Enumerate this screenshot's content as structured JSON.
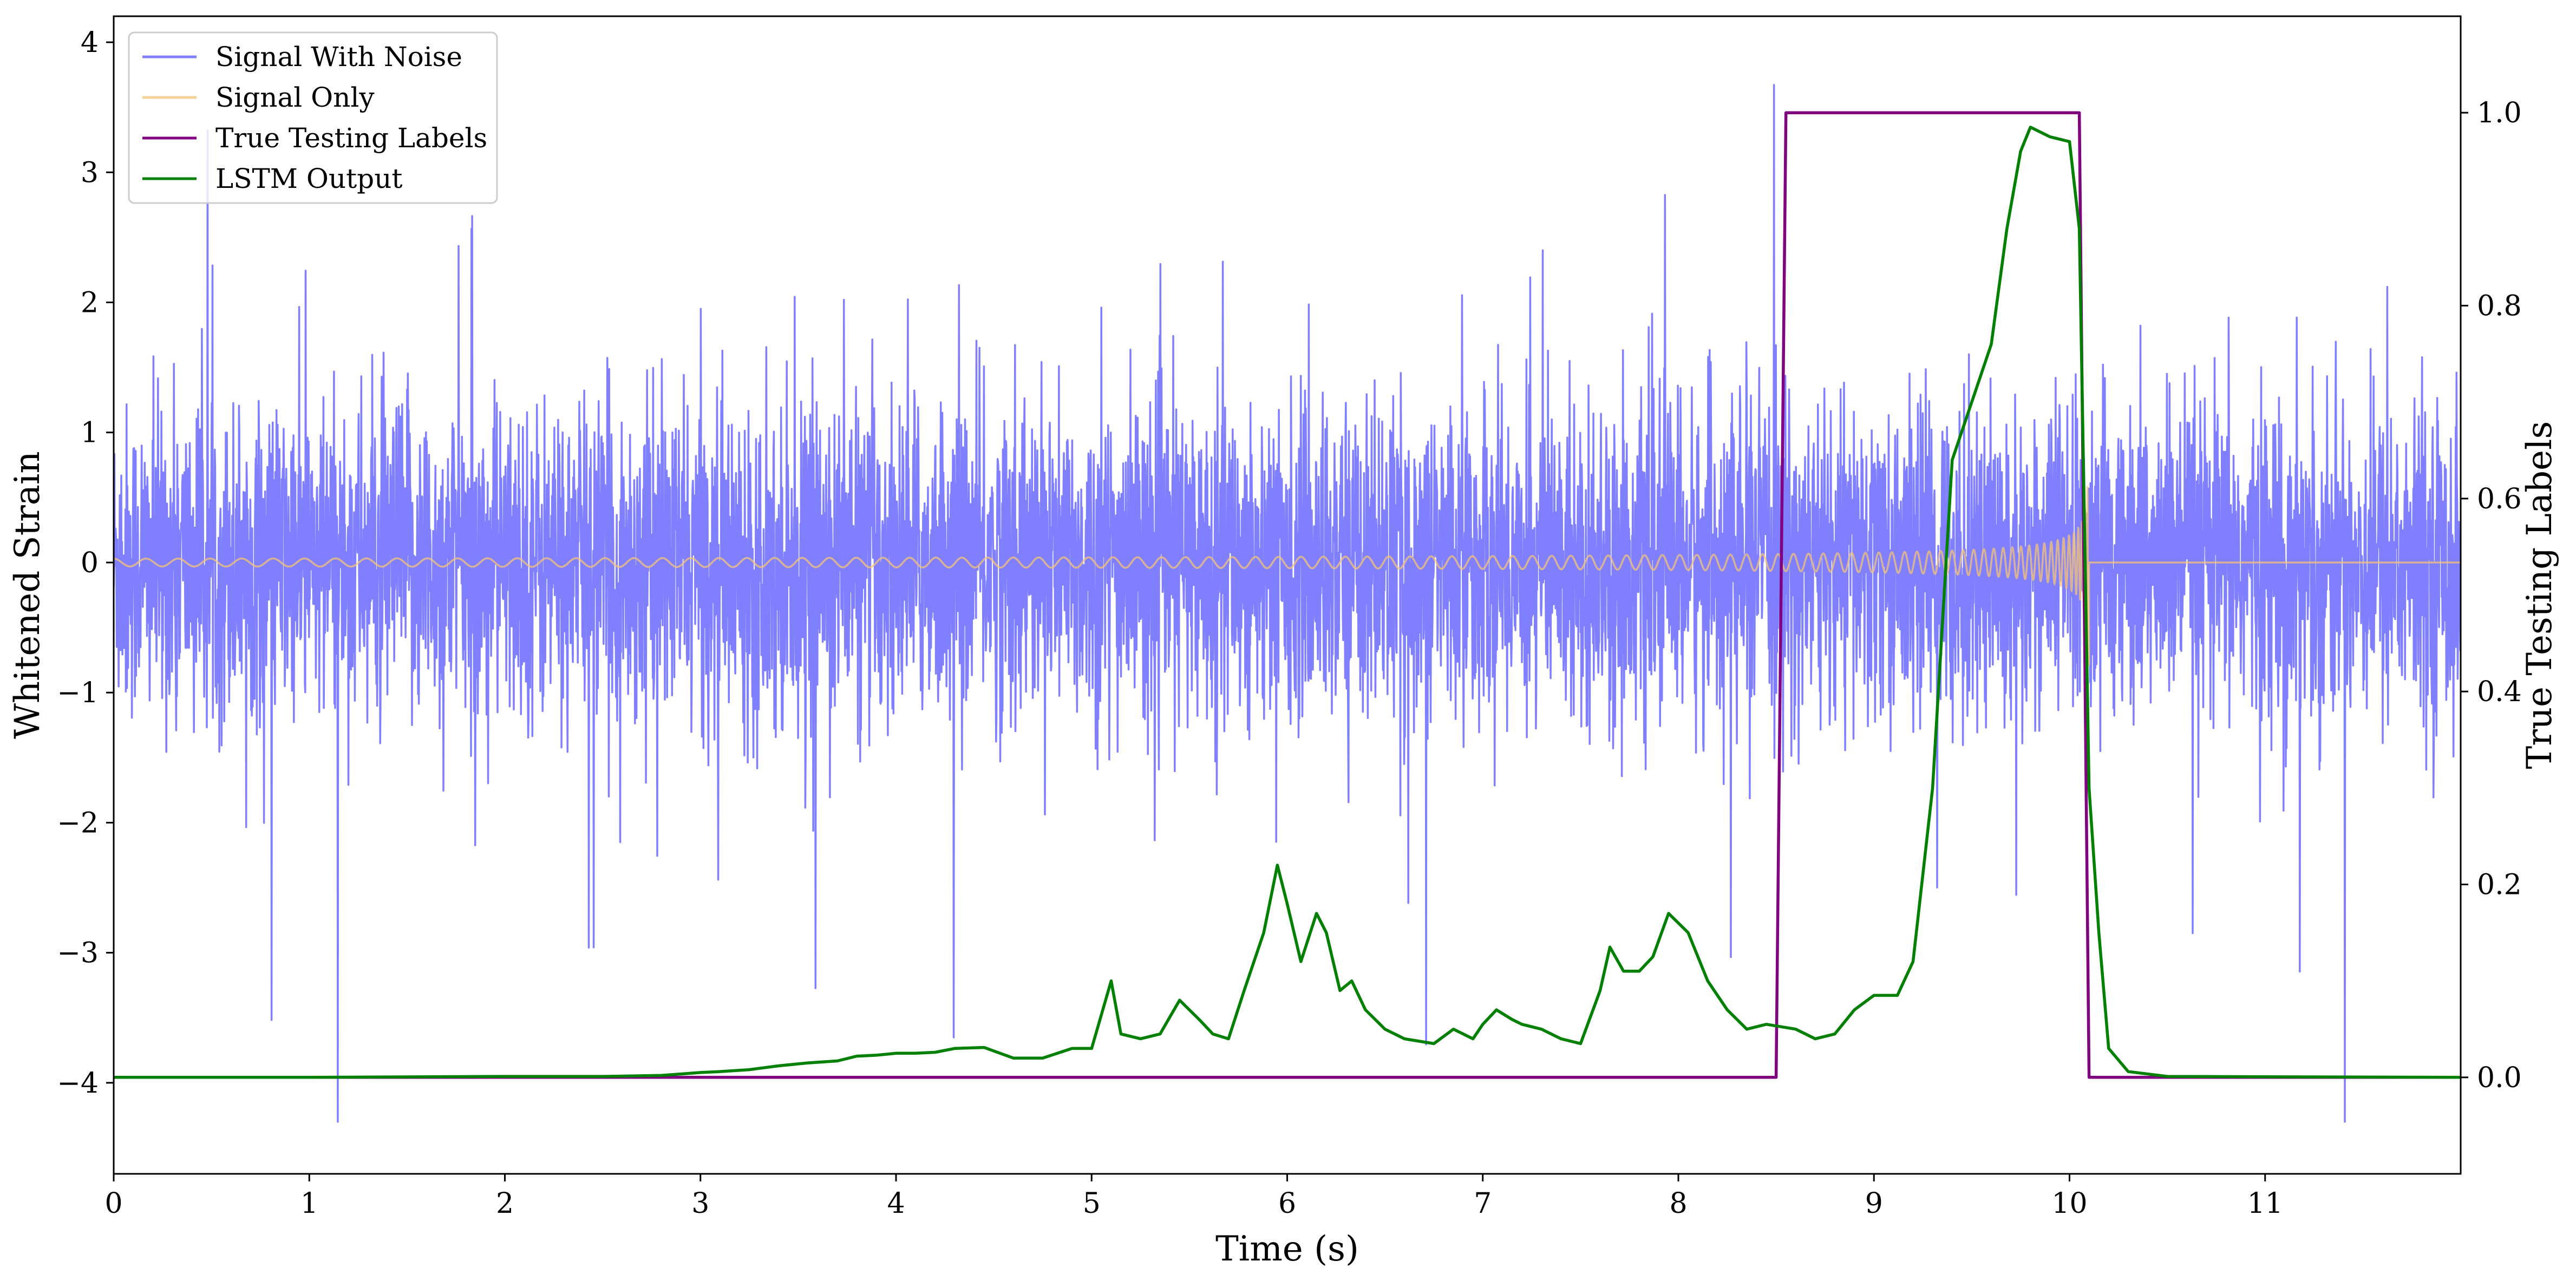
{
  "chart_data": {
    "type": "line",
    "xlabel": "Time (s)",
    "ylabel": "Whitened Strain",
    "y2label": "True Testing Labels",
    "xlim": [
      0,
      12
    ],
    "ylim": [
      -4.7,
      4.2
    ],
    "y2lim": [
      -0.1,
      1.1
    ],
    "x_ticks": [
      0,
      1,
      2,
      3,
      4,
      5,
      6,
      7,
      8,
      9,
      10,
      11
    ],
    "y_ticks": [
      -4,
      -3,
      -2,
      -1,
      0,
      1,
      2,
      3,
      4
    ],
    "y2_ticks": [
      0.0,
      0.2,
      0.4,
      0.6,
      0.8,
      1.0
    ],
    "x_tick_labels": [
      "0",
      "1",
      "2",
      "3",
      "4",
      "5",
      "6",
      "7",
      "8",
      "9",
      "10",
      "11"
    ],
    "y_tick_labels": [
      "−4",
      "−3",
      "−2",
      "−1",
      "0",
      "1",
      "2",
      "3",
      "4"
    ],
    "y2_tick_labels": [
      "0.0",
      "0.2",
      "0.4",
      "0.6",
      "0.8",
      "1.0"
    ],
    "grid": false,
    "legend_position": "top-left",
    "series": [
      {
        "name": "Signal With Noise",
        "axis": "left",
        "color": "#7f7fff",
        "kind": "noise",
        "typical_amplitude": 1.6,
        "max": 3.85,
        "min": -4.3
      },
      {
        "name": "Signal Only",
        "axis": "left",
        "color": "#f5c373",
        "kind": "chirp",
        "start_amplitude": 0.03,
        "end_amplitude": 1.0,
        "end_time": 10.1
      },
      {
        "name": "True Testing Labels",
        "axis": "right",
        "color": "#800080",
        "x": [
          0,
          8.5,
          8.55,
          10.05,
          10.1,
          12
        ],
        "y": [
          0,
          0,
          1,
          1,
          0,
          0
        ]
      },
      {
        "name": "LSTM Output",
        "axis": "right",
        "color": "#008000",
        "x": [
          0,
          1,
          2,
          2.5,
          2.8,
          3,
          3.1,
          3.25,
          3.4,
          3.55,
          3.7,
          3.8,
          3.9,
          4,
          4.1,
          4.2,
          4.3,
          4.45,
          4.6,
          4.75,
          4.9,
          5,
          5.1,
          5.15,
          5.25,
          5.35,
          5.45,
          5.55,
          5.62,
          5.7,
          5.78,
          5.88,
          5.95,
          6,
          6.07,
          6.15,
          6.2,
          6.27,
          6.33,
          6.4,
          6.5,
          6.6,
          6.75,
          6.85,
          6.95,
          7.0,
          7.07,
          7.15,
          7.2,
          7.3,
          7.4,
          7.5,
          7.6,
          7.65,
          7.72,
          7.8,
          7.87,
          7.95,
          8.05,
          8.15,
          8.25,
          8.35,
          8.45,
          8.6,
          8.7,
          8.8,
          8.9,
          9.0,
          9.05,
          9.12,
          9.2,
          9.3,
          9.4,
          9.5,
          9.6,
          9.68,
          9.75,
          9.8,
          9.9,
          10.0,
          10.05,
          10.1,
          10.15,
          10.2,
          10.3,
          10.5,
          12
        ],
        "y": [
          0,
          0,
          0.001,
          0.001,
          0.002,
          0.005,
          0.006,
          0.008,
          0.012,
          0.015,
          0.017,
          0.022,
          0.023,
          0.025,
          0.025,
          0.026,
          0.03,
          0.031,
          0.02,
          0.02,
          0.03,
          0.03,
          0.1,
          0.045,
          0.04,
          0.045,
          0.08,
          0.06,
          0.045,
          0.04,
          0.09,
          0.15,
          0.22,
          0.18,
          0.12,
          0.17,
          0.15,
          0.09,
          0.1,
          0.07,
          0.05,
          0.04,
          0.035,
          0.05,
          0.04,
          0.055,
          0.07,
          0.06,
          0.055,
          0.05,
          0.04,
          0.035,
          0.09,
          0.135,
          0.11,
          0.11,
          0.125,
          0.17,
          0.15,
          0.1,
          0.07,
          0.05,
          0.055,
          0.05,
          0.04,
          0.045,
          0.07,
          0.085,
          0.085,
          0.085,
          0.12,
          0.3,
          0.64,
          0.7,
          0.76,
          0.88,
          0.96,
          0.985,
          0.975,
          0.97,
          0.88,
          0.3,
          0.15,
          0.03,
          0.006,
          0.001,
          0
        ]
      }
    ]
  }
}
